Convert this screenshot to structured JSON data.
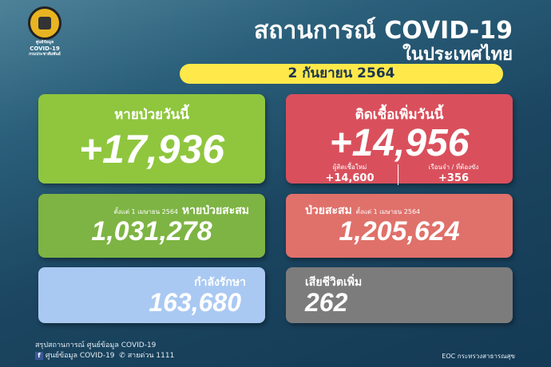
{
  "logo": {
    "line1": "ศูนย์ข้อมูล",
    "line2": "COVID-19",
    "line3": "กรมประชาสัมพันธ์"
  },
  "header": {
    "title": "สถานการณ์ COVID-19",
    "subtitle": "ในประเทศไทย",
    "date": "2 กันยายน 2564"
  },
  "recovered_today": {
    "label": "หายป่วยวันนี้",
    "value": "+17,936"
  },
  "new_cases": {
    "label": "ติดเชื้อเพิ่มวันนี้",
    "value": "+14,956",
    "sub1_label": "ผู้ติดเชื้อใหม่",
    "sub1_value": "+14,600",
    "sub2_label": "เรือนจำ / ที่ต้องขัง",
    "sub2_value": "+356"
  },
  "recovered_total": {
    "since": "ตั้งแต่ 1 เมษายน 2564",
    "label": "หายป่วยสะสม",
    "value": "1,031,278"
  },
  "cases_total": {
    "label": "ป่วยสะสม",
    "since": "ตั้งแต่ 1 เมษายน 2564",
    "value": "1,205,624"
  },
  "in_treatment": {
    "label": "กำลังรักษา",
    "value": "163,680"
  },
  "deaths": {
    "label": "เสียชีวิตเพิ่ม",
    "value": "262"
  },
  "footer": {
    "summary": "สรุปสถานการณ์ ศูนย์ข้อมูล COVID-19",
    "facebook": "ศูนย์ข้อมูล COVID-19",
    "hotline": "สายด่วน 1111",
    "source": "EOC กระทรวงสาธารณสุข"
  },
  "colors": {
    "green": "#8fc63e",
    "red": "#d9505c",
    "salmon": "#e0706a",
    "blue": "#a9c9f2",
    "gray": "#7c7c7c",
    "yellow": "#ffe94a"
  }
}
